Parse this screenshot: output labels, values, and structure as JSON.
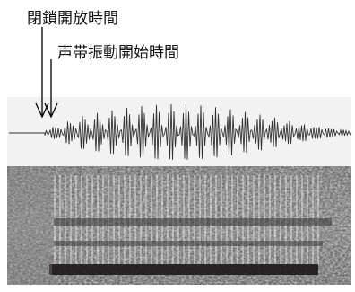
{
  "labels": {
    "closure_release": "閉鎖開放時間",
    "voice_onset": "声帯振動開始時間"
  }
}
